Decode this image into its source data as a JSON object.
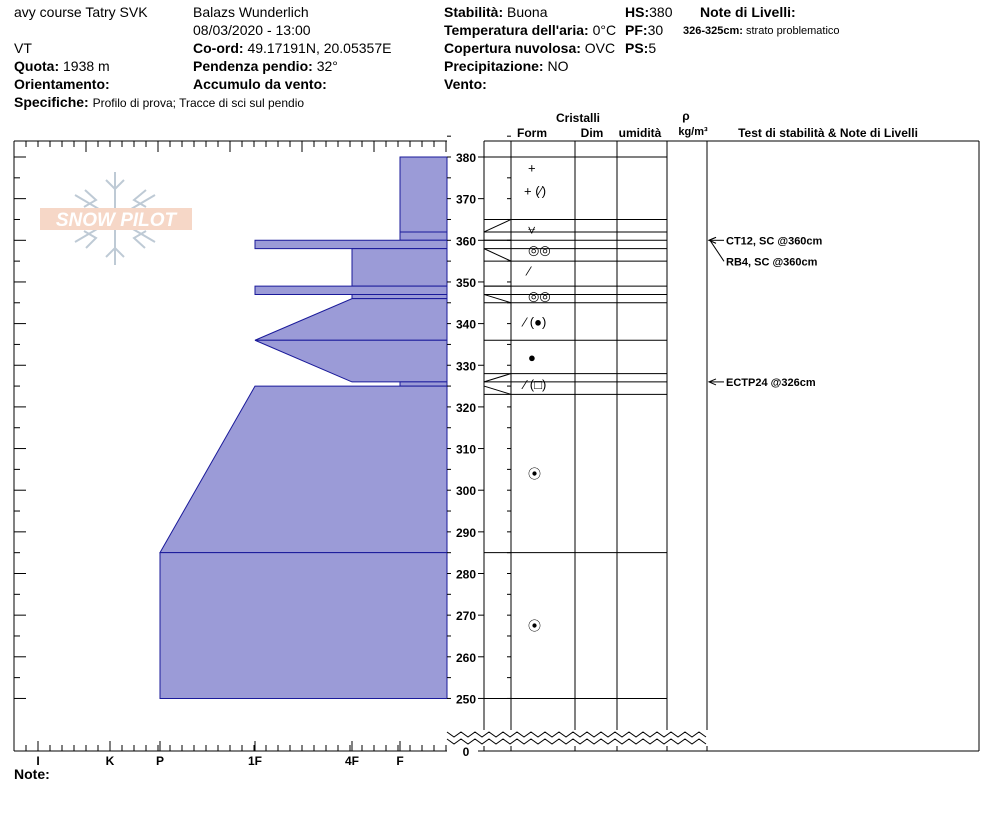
{
  "header": {
    "location": "avy course Tatry SVK",
    "observer": "Balazs Wunderlich",
    "datetime": "08/03/2020 - 13:00",
    "region": "VT",
    "elevation_label": "Quota:",
    "elevation_value": "1938 m",
    "coord_label": "Co-ord:",
    "coord_value": "49.17191N, 20.05357E",
    "aspect_label": "Orientamento:",
    "aspect_value": "",
    "slope_label": "Pendenza pendio:",
    "slope_value": "32°",
    "windload_label": "Accumulo da vento:",
    "windload_value": "",
    "specifics_label": "Specifiche:",
    "specifics_value": "Profilo di prova;  Tracce di sci sul pendio",
    "stability_label": "Stabilità:",
    "stability_value": "Buona",
    "airtemp_label": "Temperatura dell'aria:",
    "airtemp_value": "0°C",
    "cloud_label": "Copertura nuvolosa:",
    "cloud_value": "OVC",
    "precip_label": "Precipitazione:",
    "precip_value": "NO",
    "wind_label": "Vento:",
    "wind_value": "",
    "hs_label": "HS:",
    "hs_value": "380",
    "pf_label": "PF:",
    "pf_value": "30",
    "ps_label": "PS:",
    "ps_value": "5",
    "layer_notes_label": "Note di Livelli:",
    "layer_note_range": "326-325cm:",
    "layer_note_text": "strato problematico"
  },
  "columns": {
    "crystals": "Cristalli",
    "form": "Form",
    "size": "Dim",
    "moisture": "umidità",
    "rho": "ρ",
    "density_unit": "kg/m³",
    "tests": "Test di stabilità & Note di Livelli"
  },
  "notes_label": "Note:",
  "logo_text": "SNOW PILOT",
  "colors": {
    "hardness_fill": "#9b9bd7",
    "hardness_stroke": "#1a1a9a"
  },
  "chart_data": {
    "type": "snow-profile",
    "hardness_scale": [
      "I",
      "K",
      "P",
      "1F",
      "4F",
      "F"
    ],
    "height_ticks": [
      380,
      370,
      360,
      350,
      340,
      330,
      320,
      310,
      300,
      290,
      280,
      270,
      260,
      250,
      0
    ],
    "ylim": [
      250,
      385
    ],
    "hardness_profile": [
      {
        "top": 380,
        "bottom": 362,
        "hardness": "F"
      },
      {
        "top": 362,
        "bottom": 360,
        "hardness": "F"
      },
      {
        "top": 360,
        "bottom": 358,
        "hardness": "1F"
      },
      {
        "top": 358,
        "bottom": 349,
        "hardness": "4F"
      },
      {
        "top": 349,
        "bottom": 347,
        "hardness": "1F"
      },
      {
        "top": 347,
        "bottom": 346,
        "hardness": "4F"
      },
      {
        "top": 346,
        "bottom": 336,
        "hardness": "4F-1F"
      },
      {
        "top": 336,
        "bottom": 326,
        "hardness": "1F-4F"
      },
      {
        "top": 326,
        "bottom": 325,
        "hardness": "F"
      },
      {
        "top": 325,
        "bottom": 285,
        "hardness": "1F-P"
      },
      {
        "top": 285,
        "bottom": 250,
        "hardness": "P"
      }
    ],
    "layer_boundaries": [
      380,
      365,
      362,
      360,
      358,
      355,
      349,
      347,
      345,
      336,
      328,
      326,
      323,
      285,
      250
    ],
    "grain_forms": [
      {
        "height": 377.5,
        "symbol": "+"
      },
      {
        "height": 372,
        "symbol": "+ (⁄)"
      },
      {
        "height": 362.8,
        "symbol": "⩝"
      },
      {
        "height": 357.8,
        "symbol": "◎◎"
      },
      {
        "height": 352.8,
        "symbol": "⁄"
      },
      {
        "height": 346.8,
        "symbol": "◎◎"
      },
      {
        "height": 340.5,
        "symbol": "⁄ (●)"
      },
      {
        "height": 332,
        "symbol": "●"
      },
      {
        "height": 325.5,
        "symbol": "⁄ (□)"
      },
      {
        "height": 304,
        "symbol": "⦿"
      },
      {
        "height": 267.5,
        "symbol": "⦿"
      }
    ],
    "stability_tests": [
      {
        "height": 360,
        "label": "CT12, SC @360cm"
      },
      {
        "height": 360,
        "label": "RB4, SC @360cm"
      },
      {
        "height": 326,
        "label": "ECTP24 @326cm"
      }
    ]
  }
}
